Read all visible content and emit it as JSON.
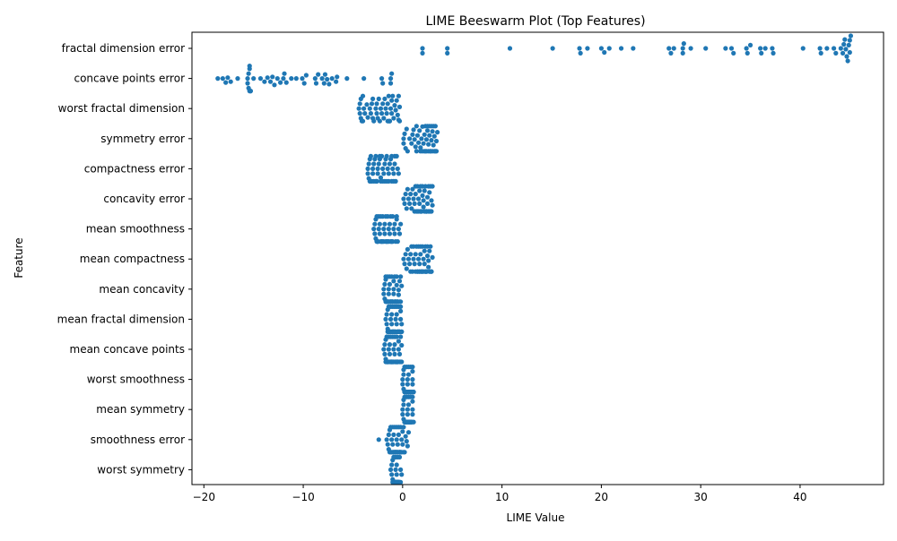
{
  "chart_data": {
    "type": "scatter",
    "title": "LIME Beeswarm Plot (Top Features)",
    "xlabel": "LIME Value",
    "ylabel": "Feature",
    "xlim": [
      -21.2,
      48.4
    ],
    "x_ticks": [
      -20,
      -10,
      0,
      10,
      20,
      30,
      40
    ],
    "grid": false,
    "marker_color": "#1f77b4",
    "categories": [
      "fractal dimension error",
      "concave points error",
      "worst fractal dimension",
      "symmetry error",
      "compactness error",
      "concavity error",
      "mean smoothness",
      "mean compactness",
      "mean concavity",
      "mean fractal dimension",
      "mean concave points",
      "worst smoothness",
      "mean symmetry",
      "smoothness error",
      "worst symmetry"
    ],
    "series": [
      {
        "feature": "fractal dimension error",
        "x": [
          2.0,
          2.0,
          4.5,
          4.5,
          10.8,
          15.1,
          17.8,
          17.9,
          18.6,
          20.0,
          20.3,
          20.8,
          22.0,
          23.2,
          26.8,
          27.0,
          27.3,
          28.2,
          28.2,
          28.3,
          29.0,
          30.5,
          32.5,
          33.1,
          33.3,
          34.6,
          34.7,
          35.0,
          36.0,
          36.1,
          36.5,
          37.2,
          37.3,
          40.3,
          42.0,
          42.1,
          42.7,
          43.4,
          43.6,
          44.1,
          44.3,
          44.4,
          44.5,
          44.6,
          44.7,
          44.8,
          44.9,
          45.0,
          45.0,
          45.1
        ]
      },
      {
        "feature": "concave points error",
        "x": [
          -18.6,
          -18.1,
          -17.8,
          -17.6,
          -17.3,
          -16.6,
          -15.6,
          -15.6,
          -15.5,
          -15.5,
          -15.4,
          -15.4,
          -15.4,
          -15.3,
          -15.3,
          -15.0,
          -14.3,
          -13.9,
          -13.6,
          -13.3,
          -13.1,
          -12.9,
          -12.6,
          -12.3,
          -12.0,
          -11.9,
          -11.7,
          -11.2,
          -10.7,
          -10.1,
          -9.9,
          -9.7,
          -8.8,
          -8.7,
          -8.5,
          -8.1,
          -7.9,
          -7.8,
          -7.6,
          -7.4,
          -7.1,
          -6.7,
          -6.6,
          -5.6,
          -3.9,
          -2.1,
          -2.0,
          -1.2,
          -1.2,
          -1.1
        ]
      },
      {
        "feature": "worst fractal dimension",
        "x": [
          -4.4,
          -4.3,
          -4.3,
          -4.2,
          -4.2,
          -4.1,
          -4.0,
          -4.0,
          -3.9,
          -3.8,
          -3.6,
          -3.5,
          -3.3,
          -3.2,
          -3.1,
          -3.0,
          -3.0,
          -2.9,
          -2.7,
          -2.6,
          -2.6,
          -2.5,
          -2.4,
          -2.3,
          -2.2,
          -2.1,
          -2.0,
          -1.9,
          -1.8,
          -1.7,
          -1.6,
          -1.5,
          -1.5,
          -1.4,
          -1.4,
          -1.3,
          -1.3,
          -1.2,
          -1.1,
          -1.1,
          -1.0,
          -0.9,
          -0.8,
          -0.7,
          -0.6,
          -0.5,
          -0.4,
          -0.4,
          -0.3,
          -0.3
        ]
      },
      {
        "feature": "symmetry error",
        "x": [
          0.1,
          0.1,
          0.2,
          0.3,
          0.4,
          0.5,
          0.7,
          0.9,
          1.0,
          1.1,
          1.2,
          1.3,
          1.4,
          1.4,
          1.5,
          1.6,
          1.7,
          1.8,
          1.8,
          1.9,
          2.0,
          2.0,
          2.1,
          2.2,
          2.2,
          2.3,
          2.3,
          2.4,
          2.4,
          2.5,
          2.5,
          2.6,
          2.6,
          2.7,
          2.7,
          2.8,
          2.8,
          2.9,
          2.9,
          3.0,
          3.0,
          3.1,
          3.1,
          3.2,
          3.2,
          3.3,
          3.3,
          3.4,
          3.4,
          3.5
        ]
      },
      {
        "feature": "compactness error",
        "x": [
          -3.5,
          -3.5,
          -3.4,
          -3.4,
          -3.3,
          -3.3,
          -3.2,
          -3.2,
          -3.1,
          -3.0,
          -3.0,
          -2.9,
          -2.9,
          -2.8,
          -2.7,
          -2.7,
          -2.6,
          -2.6,
          -2.5,
          -2.5,
          -2.4,
          -2.3,
          -2.3,
          -2.2,
          -2.2,
          -2.1,
          -2.0,
          -2.0,
          -1.9,
          -1.8,
          -1.8,
          -1.7,
          -1.6,
          -1.6,
          -1.5,
          -1.4,
          -1.4,
          -1.3,
          -1.2,
          -1.1,
          -1.1,
          -1.0,
          -0.9,
          -0.9,
          -0.8,
          -0.8,
          -0.7,
          -0.6,
          -0.5,
          -0.4
        ]
      },
      {
        "feature": "concavity error",
        "x": [
          0.1,
          0.2,
          0.3,
          0.4,
          0.5,
          0.7,
          0.8,
          0.9,
          1.0,
          1.1,
          1.2,
          1.3,
          1.3,
          1.4,
          1.5,
          1.5,
          1.6,
          1.6,
          1.7,
          1.7,
          1.8,
          1.8,
          1.9,
          1.9,
          2.0,
          2.0,
          2.1,
          2.1,
          2.2,
          2.2,
          2.3,
          2.3,
          2.4,
          2.4,
          2.5,
          2.5,
          2.6,
          2.6,
          2.7,
          2.7,
          2.8,
          2.8,
          2.9,
          2.9,
          3.0,
          3.0,
          1.2,
          1.8,
          2.4,
          0.6
        ]
      },
      {
        "feature": "mean smoothness",
        "x": [
          -2.9,
          -2.8,
          -2.8,
          -2.7,
          -2.7,
          -2.6,
          -2.6,
          -2.5,
          -2.5,
          -2.4,
          -2.4,
          -2.3,
          -2.3,
          -2.2,
          -2.2,
          -2.1,
          -2.1,
          -2.0,
          -2.0,
          -1.9,
          -1.9,
          -1.8,
          -1.8,
          -1.7,
          -1.6,
          -1.6,
          -1.5,
          -1.5,
          -1.4,
          -1.4,
          -1.3,
          -1.3,
          -1.2,
          -1.2,
          -1.1,
          -1.0,
          -1.0,
          -0.9,
          -0.8,
          -0.8,
          -0.7,
          -0.6,
          -0.6,
          -0.5,
          -0.4,
          -0.3,
          -0.2,
          -2.5,
          -1.7,
          -1.1
        ]
      },
      {
        "feature": "mean compactness",
        "x": [
          0.1,
          0.2,
          0.3,
          0.4,
          0.5,
          0.6,
          0.7,
          0.8,
          0.9,
          1.0,
          1.1,
          1.2,
          1.3,
          1.3,
          1.4,
          1.5,
          1.5,
          1.6,
          1.6,
          1.7,
          1.7,
          1.8,
          1.8,
          1.9,
          1.9,
          2.0,
          2.0,
          2.1,
          2.1,
          2.2,
          2.2,
          2.3,
          2.3,
          2.4,
          2.4,
          2.5,
          2.5,
          2.6,
          2.6,
          2.7,
          2.7,
          2.8,
          2.8,
          2.9,
          2.9,
          3.0,
          1.1,
          1.7,
          2.3,
          0.8
        ]
      },
      {
        "feature": "mean concavity",
        "x": [
          -1.9,
          -1.9,
          -1.8,
          -1.8,
          -1.7,
          -1.7,
          -1.7,
          -1.6,
          -1.6,
          -1.6,
          -1.5,
          -1.5,
          -1.5,
          -1.4,
          -1.4,
          -1.4,
          -1.3,
          -1.3,
          -1.3,
          -1.2,
          -1.2,
          -1.2,
          -1.1,
          -1.1,
          -1.1,
          -1.0,
          -1.0,
          -1.0,
          -0.9,
          -0.9,
          -0.9,
          -0.8,
          -0.8,
          -0.8,
          -0.7,
          -0.7,
          -0.7,
          -0.6,
          -0.6,
          -0.6,
          -0.5,
          -0.5,
          -0.5,
          -0.4,
          -0.4,
          -0.3,
          -0.3,
          -0.2,
          -0.2,
          -0.1
        ]
      },
      {
        "feature": "mean fractal dimension",
        "x": [
          -1.7,
          -1.6,
          -1.6,
          -1.5,
          -1.5,
          -1.5,
          -1.4,
          -1.4,
          -1.4,
          -1.3,
          -1.3,
          -1.3,
          -1.2,
          -1.2,
          -1.2,
          -1.1,
          -1.1,
          -1.1,
          -1.0,
          -1.0,
          -1.0,
          -0.9,
          -0.9,
          -0.9,
          -0.8,
          -0.8,
          -0.8,
          -0.7,
          -0.7,
          -0.7,
          -0.6,
          -0.6,
          -0.6,
          -0.5,
          -0.5,
          -0.5,
          -0.4,
          -0.4,
          -0.4,
          -0.3,
          -0.3,
          -0.3,
          -0.2,
          -0.2,
          -0.2,
          -0.1,
          -0.1,
          -0.1,
          -1.0,
          -0.5
        ]
      },
      {
        "feature": "mean concave points",
        "x": [
          -1.9,
          -1.8,
          -1.8,
          -1.7,
          -1.7,
          -1.7,
          -1.6,
          -1.6,
          -1.6,
          -1.5,
          -1.5,
          -1.5,
          -1.4,
          -1.4,
          -1.4,
          -1.3,
          -1.3,
          -1.3,
          -1.2,
          -1.2,
          -1.2,
          -1.1,
          -1.1,
          -1.1,
          -1.0,
          -1.0,
          -1.0,
          -0.9,
          -0.9,
          -0.9,
          -0.8,
          -0.8,
          -0.8,
          -0.7,
          -0.7,
          -0.7,
          -0.6,
          -0.6,
          -0.6,
          -0.5,
          -0.5,
          -0.5,
          -0.4,
          -0.4,
          -0.3,
          -0.3,
          -0.2,
          -0.2,
          -0.1,
          -0.1
        ]
      },
      {
        "feature": "worst smoothness",
        "x": [
          0.0,
          0.0,
          0.1,
          0.1,
          0.1,
          0.2,
          0.2,
          0.2,
          0.3,
          0.3,
          0.3,
          0.3,
          0.4,
          0.4,
          0.4,
          0.4,
          0.5,
          0.5,
          0.5,
          0.5,
          0.6,
          0.6,
          0.6,
          0.6,
          0.7,
          0.7,
          0.7,
          0.7,
          0.8,
          0.8,
          0.8,
          0.8,
          0.9,
          0.9,
          0.9,
          0.9,
          1.0,
          1.0,
          1.0,
          1.0,
          1.1,
          1.1,
          1.1,
          0.2,
          0.5,
          0.7,
          0.9,
          0.3,
          0.6,
          0.8
        ]
      },
      {
        "feature": "mean symmetry",
        "x": [
          0.0,
          0.0,
          0.1,
          0.1,
          0.1,
          0.2,
          0.2,
          0.2,
          0.3,
          0.3,
          0.3,
          0.3,
          0.4,
          0.4,
          0.4,
          0.4,
          0.5,
          0.5,
          0.5,
          0.5,
          0.6,
          0.6,
          0.6,
          0.6,
          0.7,
          0.7,
          0.7,
          0.7,
          0.8,
          0.8,
          0.8,
          0.8,
          0.9,
          0.9,
          0.9,
          0.9,
          1.0,
          1.0,
          1.0,
          1.0,
          1.1,
          1.1,
          0.2,
          0.5,
          0.7,
          0.9,
          0.3,
          0.6,
          0.8,
          0.4
        ]
      },
      {
        "feature": "smoothness error",
        "x": [
          -2.4,
          -1.6,
          -1.5,
          -1.4,
          -1.4,
          -1.3,
          -1.3,
          -1.2,
          -1.2,
          -1.1,
          -1.1,
          -1.0,
          -1.0,
          -1.0,
          -0.9,
          -0.9,
          -0.9,
          -0.8,
          -0.8,
          -0.8,
          -0.7,
          -0.7,
          -0.7,
          -0.6,
          -0.6,
          -0.6,
          -0.5,
          -0.5,
          -0.5,
          -0.4,
          -0.4,
          -0.4,
          -0.3,
          -0.3,
          -0.3,
          -0.2,
          -0.2,
          -0.2,
          -0.1,
          -0.1,
          0.0,
          0.0,
          0.1,
          0.1,
          0.2,
          0.3,
          0.4,
          0.5,
          0.6,
          -0.6
        ]
      },
      {
        "feature": "worst symmetry",
        "x": [
          -1.2,
          -1.1,
          -1.1,
          -1.0,
          -1.0,
          -1.0,
          -0.9,
          -0.9,
          -0.9,
          -0.9,
          -0.8,
          -0.8,
          -0.8,
          -0.8,
          -0.8,
          -0.7,
          -0.7,
          -0.7,
          -0.7,
          -0.7,
          -0.6,
          -0.6,
          -0.6,
          -0.6,
          -0.6,
          -0.5,
          -0.5,
          -0.5,
          -0.5,
          -0.5,
          -0.4,
          -0.4,
          -0.4,
          -0.4,
          -0.3,
          -0.3,
          -0.3,
          -0.2,
          -0.2,
          -0.1,
          -0.9,
          -0.8,
          -0.7,
          -0.6,
          -0.5,
          -0.7,
          -0.6,
          -0.8,
          -0.5,
          -0.4
        ]
      }
    ]
  }
}
